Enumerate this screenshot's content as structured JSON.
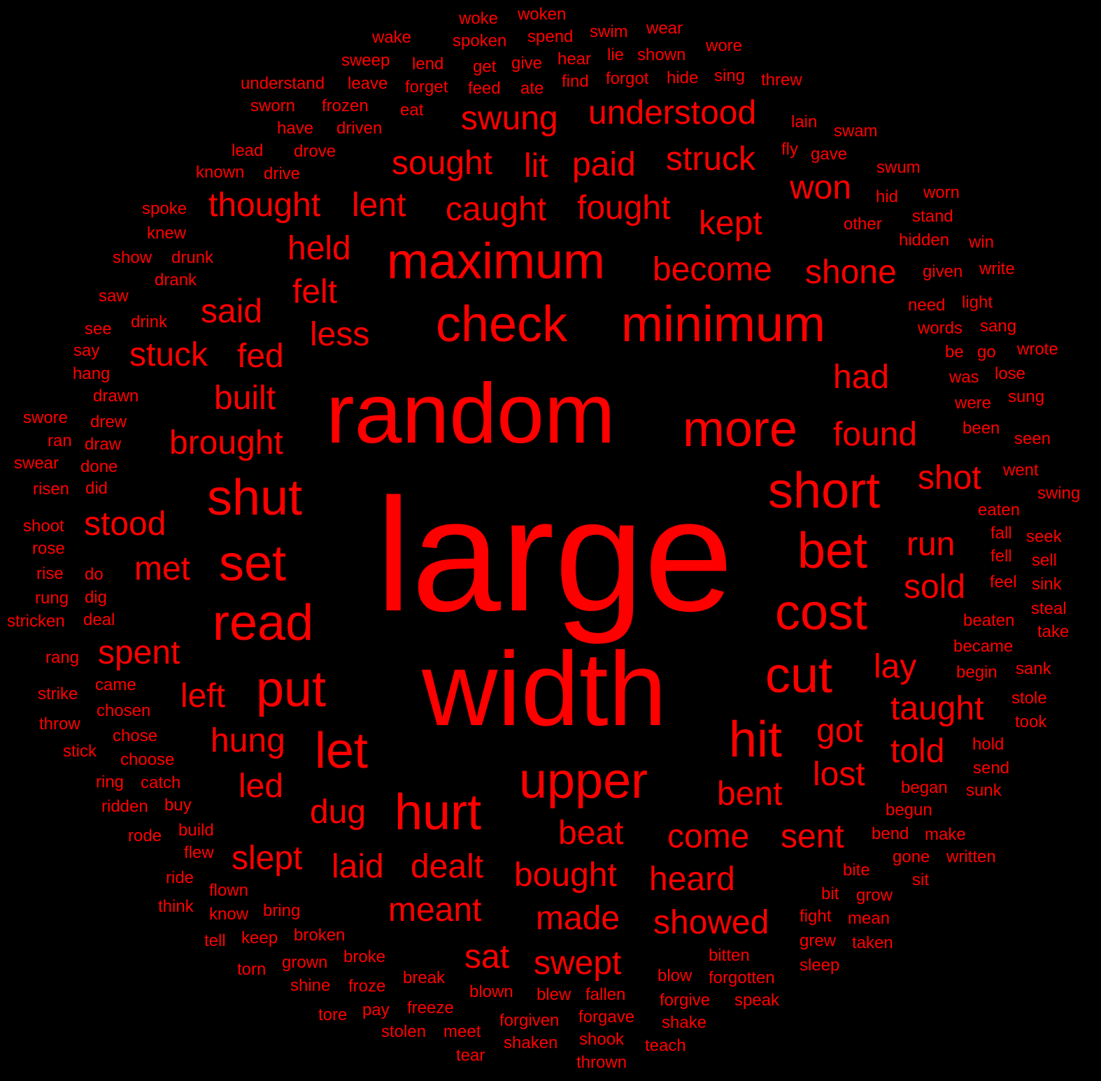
{
  "colors": {
    "background": "#000000",
    "text": "#ff0000"
  },
  "words": [
    "large",
    "width",
    "random",
    "maximum",
    "minimum",
    "check",
    "upper",
    "short",
    "cost",
    "more",
    "shut",
    "read",
    "put",
    "hit",
    "let",
    "bet",
    "cut",
    "hurt",
    "set",
    "swung",
    "understood",
    "sought",
    "paid",
    "struck",
    "lit",
    "won",
    "thought",
    "lent",
    "caught",
    "fought",
    "kept",
    "held",
    "become",
    "shone",
    "felt",
    "said",
    "less",
    "stuck",
    "fed",
    "had",
    "built",
    "found",
    "brought",
    "shot",
    "stood",
    "run",
    "met",
    "sold",
    "spent",
    "lay",
    "left",
    "taught",
    "hung",
    "got",
    "told",
    "led",
    "lost",
    "bent",
    "dug",
    "beat",
    "come",
    "sent",
    "slept",
    "laid",
    "dealt",
    "bought",
    "heard",
    "meant",
    "made",
    "showed",
    "sat",
    "swept",
    "woke",
    "woken",
    "wake",
    "spoken",
    "spend",
    "swim",
    "wear",
    "wore",
    "sweep",
    "lend",
    "get",
    "give",
    "hear",
    "lie",
    "shown",
    "understand",
    "leave",
    "forget",
    "feed",
    "ate",
    "find",
    "forgot",
    "hide",
    "sing",
    "threw",
    "sworn",
    "frozen",
    "eat",
    "have",
    "driven",
    "lain",
    "swam",
    "lead",
    "drove",
    "fly",
    "gave",
    "known",
    "drive",
    "swum",
    "hid",
    "worn",
    "spoke",
    "stand",
    "other",
    "knew",
    "hidden",
    "win",
    "show",
    "drunk",
    "drank",
    "given",
    "write",
    "saw",
    "need",
    "light",
    "see",
    "drink",
    "words",
    "sang",
    "say",
    "be",
    "go",
    "wrote",
    "hang",
    "was",
    "lose",
    "drawn",
    "sung",
    "were",
    "swore",
    "drew",
    "been",
    "ran",
    "draw",
    "seen",
    "swear",
    "done",
    "went",
    "risen",
    "did",
    "swing",
    "eaten",
    "shoot",
    "fall",
    "seek",
    "rose",
    "fell",
    "sell",
    "rise",
    "do",
    "feel",
    "sink",
    "rung",
    "dig",
    "steal",
    "stricken",
    "deal",
    "beaten",
    "take",
    "became",
    "rang",
    "begin",
    "sank",
    "came",
    "strike",
    "stole",
    "chosen",
    "throw",
    "took",
    "chose",
    "hold",
    "stick",
    "choose",
    "send",
    "ring",
    "catch",
    "began",
    "sunk",
    "ridden",
    "buy",
    "begun",
    "rode",
    "build",
    "bend",
    "make",
    "flew",
    "gone",
    "written",
    "ride",
    "bite",
    "sit",
    "flown",
    "bit",
    "grow",
    "think",
    "know",
    "bring",
    "fight",
    "mean",
    "tell",
    "keep",
    "broken",
    "grew",
    "taken",
    "bitten",
    "grown",
    "broke",
    "torn",
    "sleep",
    "blow",
    "forgotten",
    "break",
    "shine",
    "froze",
    "blown",
    "blew",
    "fallen",
    "forgive",
    "speak",
    "tore",
    "pay",
    "freeze",
    "forgiven",
    "forgave",
    "shake",
    "stolen",
    "meet",
    "shaken",
    "shook",
    "teach",
    "tear",
    "thrown"
  ]
}
